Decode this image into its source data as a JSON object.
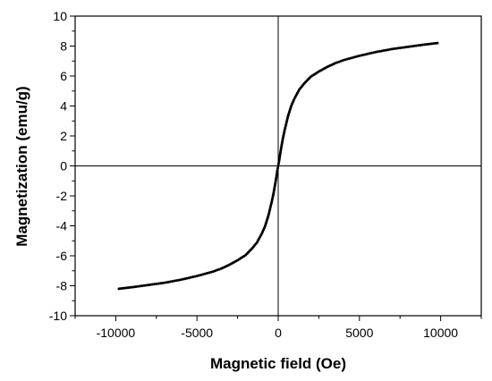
{
  "chart_data": {
    "type": "scatter",
    "title": "",
    "xlabel": "Magnetic field (Oe)",
    "ylabel": "Magnetization (emu/g)",
    "xlim": [
      -12500,
      12500
    ],
    "ylim": [
      -10,
      10
    ],
    "xticks": [
      -10000,
      -5000,
      0,
      5000,
      10000
    ],
    "yticks": [
      -10,
      -8,
      -6,
      -4,
      -2,
      0,
      2,
      4,
      6,
      8,
      10
    ],
    "grid": false,
    "legend": "none",
    "zero_lines": true,
    "colors": {
      "axis": "#000000",
      "series": "#000000"
    },
    "series": [
      {
        "x": [
          -9800,
          -9000,
          -8000,
          -7000,
          -6000,
          -5000,
          -4500,
          -4000,
          -3500,
          -3000,
          -2500,
          -2000,
          -1600,
          -1300,
          -1000,
          -800,
          -600,
          -400,
          -300,
          -200,
          -100,
          -50,
          0,
          50,
          100,
          200,
          300,
          400,
          600,
          800,
          1000,
          1300,
          1600,
          2000,
          2500,
          3000,
          3500,
          4000,
          4500,
          5000,
          6000,
          7000,
          8000,
          9000,
          9800
        ],
        "y": [
          -8.2,
          -8.1,
          -7.95,
          -7.8,
          -7.6,
          -7.35,
          -7.2,
          -7.05,
          -6.85,
          -6.6,
          -6.3,
          -5.95,
          -5.5,
          -5.1,
          -4.5,
          -4.0,
          -3.3,
          -2.4,
          -1.9,
          -1.3,
          -0.65,
          -0.3,
          0.0,
          0.3,
          0.65,
          1.3,
          1.9,
          2.4,
          3.3,
          4.0,
          4.5,
          5.1,
          5.5,
          5.95,
          6.3,
          6.6,
          6.85,
          7.05,
          7.2,
          7.35,
          7.6,
          7.8,
          7.95,
          8.1,
          8.2
        ]
      }
    ]
  }
}
